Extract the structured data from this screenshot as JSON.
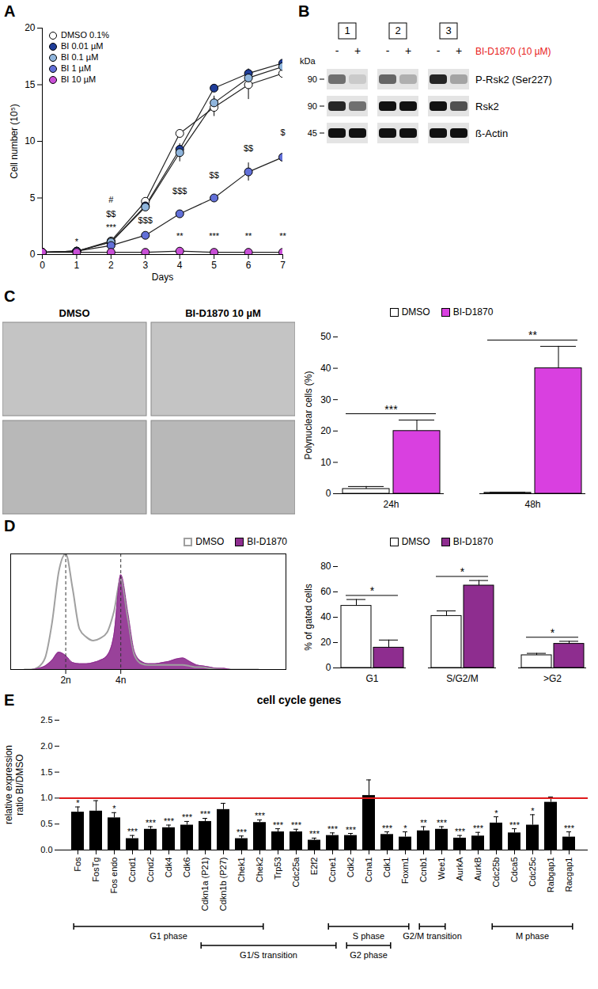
{
  "chart_data": [
    {
      "panel": "A",
      "type": "line",
      "x_label": "Days",
      "y_label": "Cell number (10⁵)",
      "x": [
        0,
        1,
        2,
        3,
        4,
        5,
        6,
        7
      ],
      "xlim": [
        0,
        7
      ],
      "xticks": [
        0,
        1,
        2,
        3,
        4,
        5,
        6,
        7
      ],
      "ylim": [
        0,
        20
      ],
      "yticks": [
        0,
        5,
        10,
        15,
        20
      ],
      "legend": "top-left",
      "marker": "circle",
      "series": [
        {
          "name": "DMSO 0.1%",
          "color": "#ffffff",
          "values": [
            0.2,
            0.3,
            1.2,
            4.7,
            10.7,
            13.0,
            15.0,
            16.0
          ],
          "errors": [
            0,
            0,
            0.1,
            0.2,
            0.3,
            0.8,
            1.3,
            0.7
          ]
        },
        {
          "name": "BI 0.01 µM",
          "color": "#1f3d99",
          "values": [
            0.2,
            0.3,
            1.1,
            4.3,
            9.3,
            14.7,
            16.0,
            16.9
          ],
          "errors": [
            0,
            0,
            0.1,
            0.2,
            0.3,
            0.3,
            0.4,
            0.3
          ]
        },
        {
          "name": "BI 0.1 µM",
          "color": "#8fb5dc",
          "values": [
            0.2,
            0.3,
            1.1,
            4.2,
            9.0,
            13.4,
            15.6,
            16.6
          ],
          "errors": [
            0,
            0,
            0.1,
            0.2,
            0.8,
            0.6,
            0.5,
            0.4
          ]
        },
        {
          "name": "BI 1 µM",
          "color": "#6270d8",
          "values": [
            0.2,
            0.3,
            0.8,
            1.7,
            3.6,
            5.0,
            7.3,
            8.6
          ],
          "errors": [
            0,
            0,
            0.1,
            0.1,
            0.2,
            0.3,
            0.8,
            0.7
          ]
        },
        {
          "name": "BI 10 µM",
          "color": "#c84fd6",
          "values": [
            0.2,
            0.2,
            0.2,
            0.2,
            0.3,
            0.2,
            0.2,
            0.2
          ],
          "errors": [
            0,
            0,
            0,
            0,
            0,
            0,
            0,
            0
          ]
        }
      ],
      "annotations": [
        {
          "x": 1,
          "y": 1.1,
          "text": "*"
        },
        {
          "x": 2,
          "y": 4.8,
          "text": "#"
        },
        {
          "x": 2,
          "y": 3.6,
          "text": "$$"
        },
        {
          "x": 2,
          "y": 2.4,
          "text": "***"
        },
        {
          "x": 3,
          "y": 3.0,
          "text": "$$$"
        },
        {
          "x": 4,
          "y": 5.6,
          "text": "$$$"
        },
        {
          "x": 4,
          "y": 1.6,
          "text": "**"
        },
        {
          "x": 5,
          "y": 7.0,
          "text": "$$"
        },
        {
          "x": 5,
          "y": 1.6,
          "text": "***"
        },
        {
          "x": 6,
          "y": 9.4,
          "text": "$$"
        },
        {
          "x": 6,
          "y": 1.6,
          "text": "**"
        },
        {
          "x": 7,
          "y": 10.8,
          "text": "$"
        },
        {
          "x": 7,
          "y": 1.6,
          "text": "**"
        }
      ]
    },
    {
      "type": "bar",
      "y_label": "Polynuclear cells (%)",
      "categories": [
        "24h",
        "48h"
      ],
      "ylim": [
        0,
        50
      ],
      "yticks": [
        0,
        10,
        20,
        30,
        40,
        50
      ],
      "legend": "top",
      "series": [
        {
          "name": "DMSO",
          "color": "#ffffff",
          "values": [
            1.5,
            0.3
          ],
          "errors": [
            0.8,
            0.2
          ]
        },
        {
          "name": "BI-D1870",
          "color": "#d940e0",
          "values": [
            20,
            40
          ],
          "errors": [
            3.5,
            7
          ]
        }
      ],
      "significance": [
        "***",
        "**"
      ]
    },
    {
      "panel": "D",
      "type": "area",
      "x": [
        5,
        7.5,
        10,
        12.5,
        15,
        17.5,
        20,
        22.5,
        25,
        27.5,
        30,
        32.5,
        35,
        37.5,
        40,
        42.5,
        45,
        47.5,
        50,
        52.5,
        55,
        57.5,
        60,
        62.5,
        65,
        67.5,
        70,
        72.5,
        75,
        77.5,
        80,
        82.5,
        85,
        87.5,
        90
      ],
      "xlim": [
        0,
        100
      ],
      "xticks": [
        {
          "value": 20,
          "label": "2n"
        },
        {
          "value": 40,
          "label": "4n"
        }
      ],
      "ylim": [
        0,
        1
      ],
      "tick_labels": "x",
      "legend": "top-right",
      "series": [
        {
          "name": "DMSO",
          "type": "line",
          "color": "#a0a0a0",
          "values": [
            0,
            0,
            0.02,
            0.1,
            0.4,
            0.85,
            1.0,
            0.7,
            0.35,
            0.28,
            0.25,
            0.27,
            0.32,
            0.5,
            0.78,
            0.45,
            0.12,
            0.05,
            0.04,
            0.04,
            0.04,
            0.04,
            0.04,
            0.04,
            0.03,
            0.02,
            0.02,
            0.01,
            0.01,
            0,
            0,
            0,
            0,
            0,
            0
          ]
        },
        {
          "name": "BI-D1870",
          "type": "area",
          "color": "#8e2d8f",
          "values": [
            0,
            0,
            0.01,
            0.03,
            0.08,
            0.15,
            0.12,
            0.06,
            0.05,
            0.05,
            0.06,
            0.08,
            0.12,
            0.3,
            0.82,
            0.5,
            0.15,
            0.07,
            0.05,
            0.05,
            0.06,
            0.07,
            0.09,
            0.1,
            0.07,
            0.04,
            0.03,
            0.02,
            0.01,
            0.01,
            0,
            0,
            0,
            0,
            0
          ]
        }
      ]
    },
    {
      "type": "bar",
      "y_label": "% of gated cells",
      "categories": [
        "G1",
        "S/G2/M",
        ">G2"
      ],
      "ylim": [
        0,
        80
      ],
      "yticks": [
        0,
        20,
        40,
        60,
        80
      ],
      "legend": "top",
      "series": [
        {
          "name": "DMSO",
          "color": "#ffffff",
          "values": [
            49,
            41,
            10
          ],
          "errors": [
            5,
            4,
            1.5
          ]
        },
        {
          "name": "BI-D1870",
          "color": "#8e2d8f",
          "values": [
            16,
            65,
            19
          ],
          "errors": [
            6,
            4,
            2
          ]
        }
      ],
      "significance": [
        "*",
        "*",
        "*"
      ]
    },
    {
      "panel": "E",
      "type": "bar",
      "title": "cell cycle genes",
      "y_label": "relative expression ratio BI/DMSO",
      "categories": [
        "Fos",
        "FosTg",
        "Fos endo",
        "Ccnd1",
        "Ccnd2",
        "Cdk4",
        "Cdk6",
        "Cdkn1a (P21)",
        "Cdkn1b (P27)",
        "Chek1",
        "Chek2",
        "Trp53",
        "Cdc25a",
        "E2f2",
        "Ccne1",
        "Cdk2",
        "Ccna1",
        "Cdk1",
        "Foxm1",
        "Ccnb1",
        "Wee1",
        "AurkA",
        "AurkB",
        "Cdc25b",
        "Cdca5",
        "Cdc25c",
        "Rabgap1",
        "Racgap1"
      ],
      "values": [
        0.73,
        0.75,
        0.62,
        0.22,
        0.4,
        0.43,
        0.48,
        0.55,
        0.78,
        0.22,
        0.53,
        0.35,
        0.35,
        0.19,
        0.28,
        0.28,
        1.05,
        0.3,
        0.25,
        0.37,
        0.4,
        0.23,
        0.27,
        0.52,
        0.33,
        0.48,
        0.92,
        0.25
      ],
      "errors": [
        0.1,
        0.2,
        0.1,
        0.06,
        0.05,
        0.05,
        0.07,
        0.06,
        0.12,
        0.05,
        0.05,
        0.06,
        0.05,
        0.04,
        0.05,
        0.04,
        0.3,
        0.05,
        0.1,
        0.08,
        0.05,
        0.05,
        0.07,
        0.12,
        0.08,
        0.2,
        0.1,
        0.1
      ],
      "significance": [
        "*",
        null,
        "*",
        "***",
        "***",
        "***",
        "***",
        "***",
        null,
        "***",
        "***",
        "***",
        "***",
        "***",
        "***",
        "***",
        null,
        "***",
        "*",
        "**",
        "***",
        "***",
        "***",
        "*",
        "***",
        "*",
        null,
        "***"
      ],
      "color": "#000000",
      "reference_line": {
        "value": 1,
        "color": "#e0191b"
      },
      "ylim": [
        0,
        2.5
      ],
      "yticks": [
        {
          "value": 0,
          "label": "0.0"
        },
        {
          "value": 0.5,
          "label": "0.5"
        },
        {
          "value": 1,
          "label": "1.0"
        },
        {
          "value": 1.5,
          "label": "1.5"
        },
        {
          "value": 2,
          "label": "2.0"
        },
        {
          "value": 2.5,
          "label": "2.5"
        }
      ],
      "phases": [
        {
          "label": "G1 phase",
          "start": "Fos",
          "end": "Chek2"
        },
        {
          "label": "G1/S transition",
          "start": "Cdkn1a (P21)",
          "end": "Ccne1"
        },
        {
          "label": "S phase",
          "start": "Ccne1",
          "end": "Foxm1"
        },
        {
          "label": "G2 phase",
          "start": "Cdk2",
          "end": "Cdk1"
        },
        {
          "label": "G2/M transition",
          "start": "Ccnb1",
          "end": "Wee1"
        },
        {
          "label": "M phase",
          "start": "Cdc25b",
          "end": "Racgap1"
        }
      ]
    }
  ],
  "blot": {
    "panel": "B",
    "groups": [
      "1",
      "2",
      "3"
    ],
    "treatments": [
      "-",
      "+"
    ],
    "treatment_label": "BI-D1870 (10 µM)",
    "treatment_color": "#e8201a",
    "unit": "kDa",
    "rows": [
      {
        "label": "P-Rsk2 (Ser227)",
        "kda": 90,
        "intensity": [
          0.55,
          0.12,
          0.6,
          0.25,
          0.9,
          0.3
        ]
      },
      {
        "label": "Rsk2",
        "kda": 90,
        "intensity": [
          0.9,
          0.55,
          1,
          1,
          1,
          0.7
        ]
      },
      {
        "label": "ß-Actin",
        "kda": 45,
        "intensity": [
          1,
          1,
          1,
          1,
          1,
          1
        ]
      }
    ]
  },
  "images": {
    "panel": "C",
    "columns": [
      "DMSO",
      "BI-D1870 10 µM"
    ]
  }
}
